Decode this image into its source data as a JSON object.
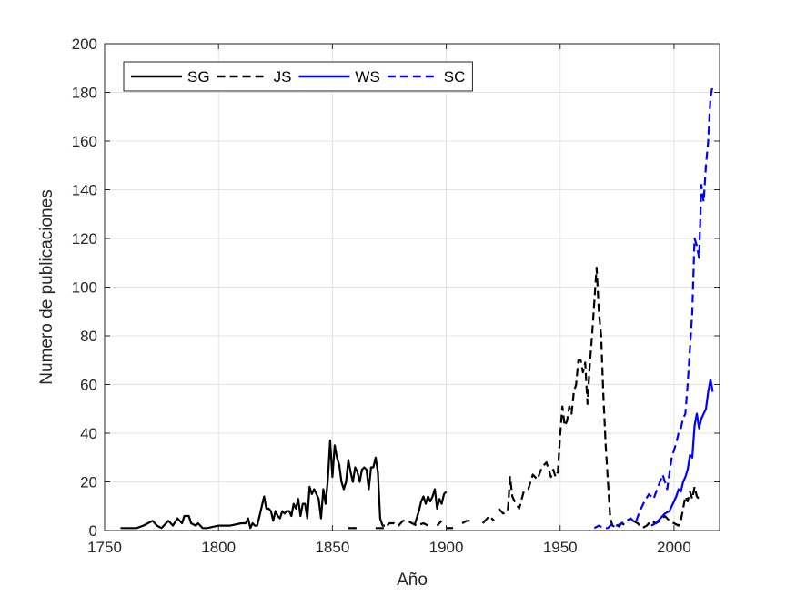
{
  "chart_data": {
    "type": "line",
    "title": "",
    "xlabel": "Año",
    "ylabel": "Numero de publicaciones",
    "xlim": [
      1750,
      2020
    ],
    "ylim": [
      0,
      200
    ],
    "xticks": [
      1750,
      1800,
      1850,
      1900,
      1950,
      2000
    ],
    "yticks": [
      0,
      20,
      40,
      60,
      80,
      100,
      120,
      140,
      160,
      180,
      200
    ],
    "grid": true,
    "legend_position": "top-left",
    "series": [
      {
        "name": "SG",
        "color": "#000000",
        "dash": "solid",
        "segments": [
          [
            [
              1757,
              1
            ],
            [
              1760,
              1
            ],
            [
              1764,
              1
            ],
            [
              1767,
              2
            ],
            [
              1771,
              4
            ],
            [
              1773,
              2
            ],
            [
              1775,
              1
            ],
            [
              1778,
              4
            ],
            [
              1780,
              2
            ],
            [
              1782,
              5
            ],
            [
              1784,
              3
            ],
            [
              1785,
              6
            ],
            [
              1787,
              6
            ],
            [
              1788,
              3
            ],
            [
              1790,
              2
            ],
            [
              1791,
              3
            ],
            [
              1793,
              1
            ],
            [
              1795,
              1
            ],
            [
              1800,
              2
            ],
            [
              1805,
              2
            ],
            [
              1810,
              3
            ],
            [
              1812,
              3
            ],
            [
              1813,
              5
            ],
            [
              1814,
              1
            ],
            [
              1815,
              3
            ],
            [
              1816,
              2
            ],
            [
              1817,
              2
            ],
            [
              1818,
              6
            ],
            [
              1819,
              10
            ],
            [
              1820,
              14
            ],
            [
              1821,
              9
            ],
            [
              1822,
              9
            ],
            [
              1823,
              8
            ],
            [
              1824,
              4
            ],
            [
              1825,
              8
            ],
            [
              1826,
              6
            ],
            [
              1827,
              5
            ],
            [
              1828,
              8
            ],
            [
              1829,
              7
            ],
            [
              1830,
              8
            ],
            [
              1831,
              8
            ],
            [
              1832,
              6
            ],
            [
              1833,
              11
            ],
            [
              1834,
              9
            ],
            [
              1835,
              13
            ],
            [
              1836,
              6
            ],
            [
              1837,
              11
            ],
            [
              1838,
              11
            ],
            [
              1839,
              5
            ],
            [
              1840,
              18
            ],
            [
              1841,
              15
            ],
            [
              1842,
              17
            ],
            [
              1843,
              15
            ],
            [
              1844,
              13
            ],
            [
              1845,
              5
            ],
            [
              1846,
              17
            ],
            [
              1847,
              11
            ],
            [
              1848,
              21
            ],
            [
              1849,
              37
            ],
            [
              1850,
              22
            ],
            [
              1851,
              35
            ],
            [
              1852,
              30
            ],
            [
              1853,
              27
            ],
            [
              1854,
              20
            ],
            [
              1855,
              17
            ],
            [
              1856,
              20
            ],
            [
              1857,
              29
            ],
            [
              1858,
              24
            ],
            [
              1859,
              20
            ],
            [
              1860,
              26
            ],
            [
              1861,
              24
            ],
            [
              1862,
              20
            ],
            [
              1863,
              25
            ],
            [
              1864,
              26
            ],
            [
              1865,
              25
            ],
            [
              1866,
              17
            ],
            [
              1867,
              26
            ],
            [
              1868,
              26
            ],
            [
              1869,
              30
            ],
            [
              1870,
              24
            ],
            [
              1871,
              5
            ],
            [
              1872,
              2
            ],
            [
              1873,
              2
            ]
          ],
          [
            [
              1886,
              2
            ],
            [
              1888,
              8
            ],
            [
              1889,
              12
            ],
            [
              1890,
              14
            ],
            [
              1891,
              11
            ],
            [
              1892,
              14
            ],
            [
              1893,
              12
            ],
            [
              1894,
              14
            ],
            [
              1895,
              17
            ],
            [
              1896,
              9
            ],
            [
              1897,
              13
            ],
            [
              1898,
              11
            ],
            [
              1899,
              15
            ],
            [
              1900,
              16
            ]
          ]
        ]
      },
      {
        "name": "JS",
        "color": "#000000",
        "dash": "dashed",
        "segments": [
          [
            [
              1857,
              1
            ],
            [
              1861,
              1
            ]
          ],
          [
            [
              1869,
              1
            ],
            [
              1873,
              1
            ],
            [
              1875,
              3
            ],
            [
              1877,
              3
            ],
            [
              1879,
              2
            ],
            [
              1881,
              4
            ],
            [
              1883,
              4
            ],
            [
              1885,
              3
            ],
            [
              1887,
              2
            ],
            [
              1890,
              3
            ],
            [
              1892,
              2
            ]
          ],
          [
            [
              1896,
              2
            ],
            [
              1898,
              4
            ]
          ],
          [
            [
              1900,
              1
            ],
            [
              1903,
              1
            ]
          ],
          [
            [
              1907,
              3
            ],
            [
              1909,
              4
            ],
            [
              1911,
              4
            ]
          ],
          [
            [
              1916,
              3
            ],
            [
              1919,
              6
            ],
            [
              1921,
              4
            ]
          ],
          [
            [
              1923,
              9
            ],
            [
              1925,
              7
            ],
            [
              1927,
              8
            ],
            [
              1928,
              22
            ],
            [
              1929,
              14
            ],
            [
              1930,
              12
            ],
            [
              1932,
              9
            ],
            [
              1934,
              16
            ],
            [
              1936,
              17
            ],
            [
              1938,
              23
            ],
            [
              1940,
              21
            ],
            [
              1942,
              26
            ],
            [
              1944,
              28
            ],
            [
              1946,
              22
            ],
            [
              1947,
              25
            ],
            [
              1948,
              22
            ],
            [
              1949,
              24
            ],
            [
              1950,
              39
            ],
            [
              1951,
              51
            ],
            [
              1952,
              43
            ],
            [
              1953,
              45
            ],
            [
              1954,
              51
            ],
            [
              1955,
              48
            ],
            [
              1956,
              57
            ],
            [
              1957,
              60
            ],
            [
              1958,
              70
            ],
            [
              1959,
              70
            ],
            [
              1960,
              65
            ],
            [
              1961,
              69
            ],
            [
              1962,
              52
            ],
            [
              1963,
              68
            ],
            [
              1964,
              80
            ],
            [
              1965,
              94
            ],
            [
              1966,
              108
            ],
            [
              1967,
              90
            ],
            [
              1968,
              80
            ],
            [
              1969,
              55
            ],
            [
              1970,
              35
            ],
            [
              1971,
              20
            ],
            [
              1972,
              5
            ],
            [
              1973,
              2
            ],
            [
              1975,
              1
            ],
            [
              1977,
              3
            ],
            [
              1979,
              2
            ]
          ],
          [
            [
              1982,
              4
            ],
            [
              1984,
              3
            ],
            [
              1986,
              1
            ],
            [
              1988,
              2
            ],
            [
              1990,
              4
            ],
            [
              1992,
              3
            ],
            [
              1994,
              4
            ],
            [
              1996,
              6
            ],
            [
              1998,
              4
            ],
            [
              2000,
              3
            ],
            [
              2002,
              2
            ],
            [
              2003,
              4
            ],
            [
              2004,
              9
            ],
            [
              2005,
              14
            ],
            [
              2006,
              12
            ],
            [
              2007,
              16
            ],
            [
              2008,
              13
            ],
            [
              2009,
              18
            ],
            [
              2010,
              14
            ],
            [
              2011,
              13
            ]
          ]
        ]
      },
      {
        "name": "WS",
        "color": "#0000ff",
        "dash": "solid",
        "segments": [
          [
            [
              1990,
              2
            ],
            [
              1992,
              3
            ],
            [
              1994,
              5
            ],
            [
              1996,
              7
            ],
            [
              1998,
              8
            ],
            [
              2000,
              12
            ],
            [
              2001,
              14
            ],
            [
              2002,
              17
            ],
            [
              2003,
              16
            ],
            [
              2004,
              20
            ],
            [
              2005,
              22
            ],
            [
              2006,
              25
            ],
            [
              2007,
              31
            ],
            [
              2008,
              30
            ],
            [
              2009,
              43
            ],
            [
              2010,
              48
            ],
            [
              2011,
              42
            ],
            [
              2012,
              46
            ],
            [
              2013,
              48
            ],
            [
              2014,
              50
            ],
            [
              2015,
              57
            ],
            [
              2016,
              62
            ],
            [
              2017,
              57
            ]
          ]
        ]
      },
      {
        "name": "SC",
        "color": "#0000ff",
        "dash": "dashed",
        "segments": [
          [
            [
              1965,
              1
            ],
            [
              1967,
              2
            ],
            [
              1969,
              1
            ],
            [
              1971,
              1
            ],
            [
              1973,
              3
            ],
            [
              1975,
              2
            ],
            [
              1977,
              3
            ],
            [
              1979,
              4
            ],
            [
              1981,
              5
            ],
            [
              1983,
              3
            ],
            [
              1985,
              8
            ],
            [
              1987,
              12
            ],
            [
              1989,
              15
            ],
            [
              1991,
              13
            ],
            [
              1993,
              18
            ],
            [
              1995,
              23
            ],
            [
              1997,
              17
            ],
            [
              1999,
              30
            ],
            [
              2001,
              36
            ],
            [
              2002,
              40
            ],
            [
              2003,
              42
            ],
            [
              2004,
              46
            ],
            [
              2005,
              48
            ],
            [
              2006,
              60
            ],
            [
              2007,
              75
            ],
            [
              2008,
              90
            ],
            [
              2009,
              120
            ],
            [
              2010,
              117
            ],
            [
              2011,
              112
            ],
            [
              2012,
              142
            ],
            [
              2013,
              135
            ],
            [
              2014,
              150
            ],
            [
              2015,
              160
            ],
            [
              2016,
              178
            ],
            [
              2017,
              183
            ]
          ]
        ]
      }
    ]
  }
}
